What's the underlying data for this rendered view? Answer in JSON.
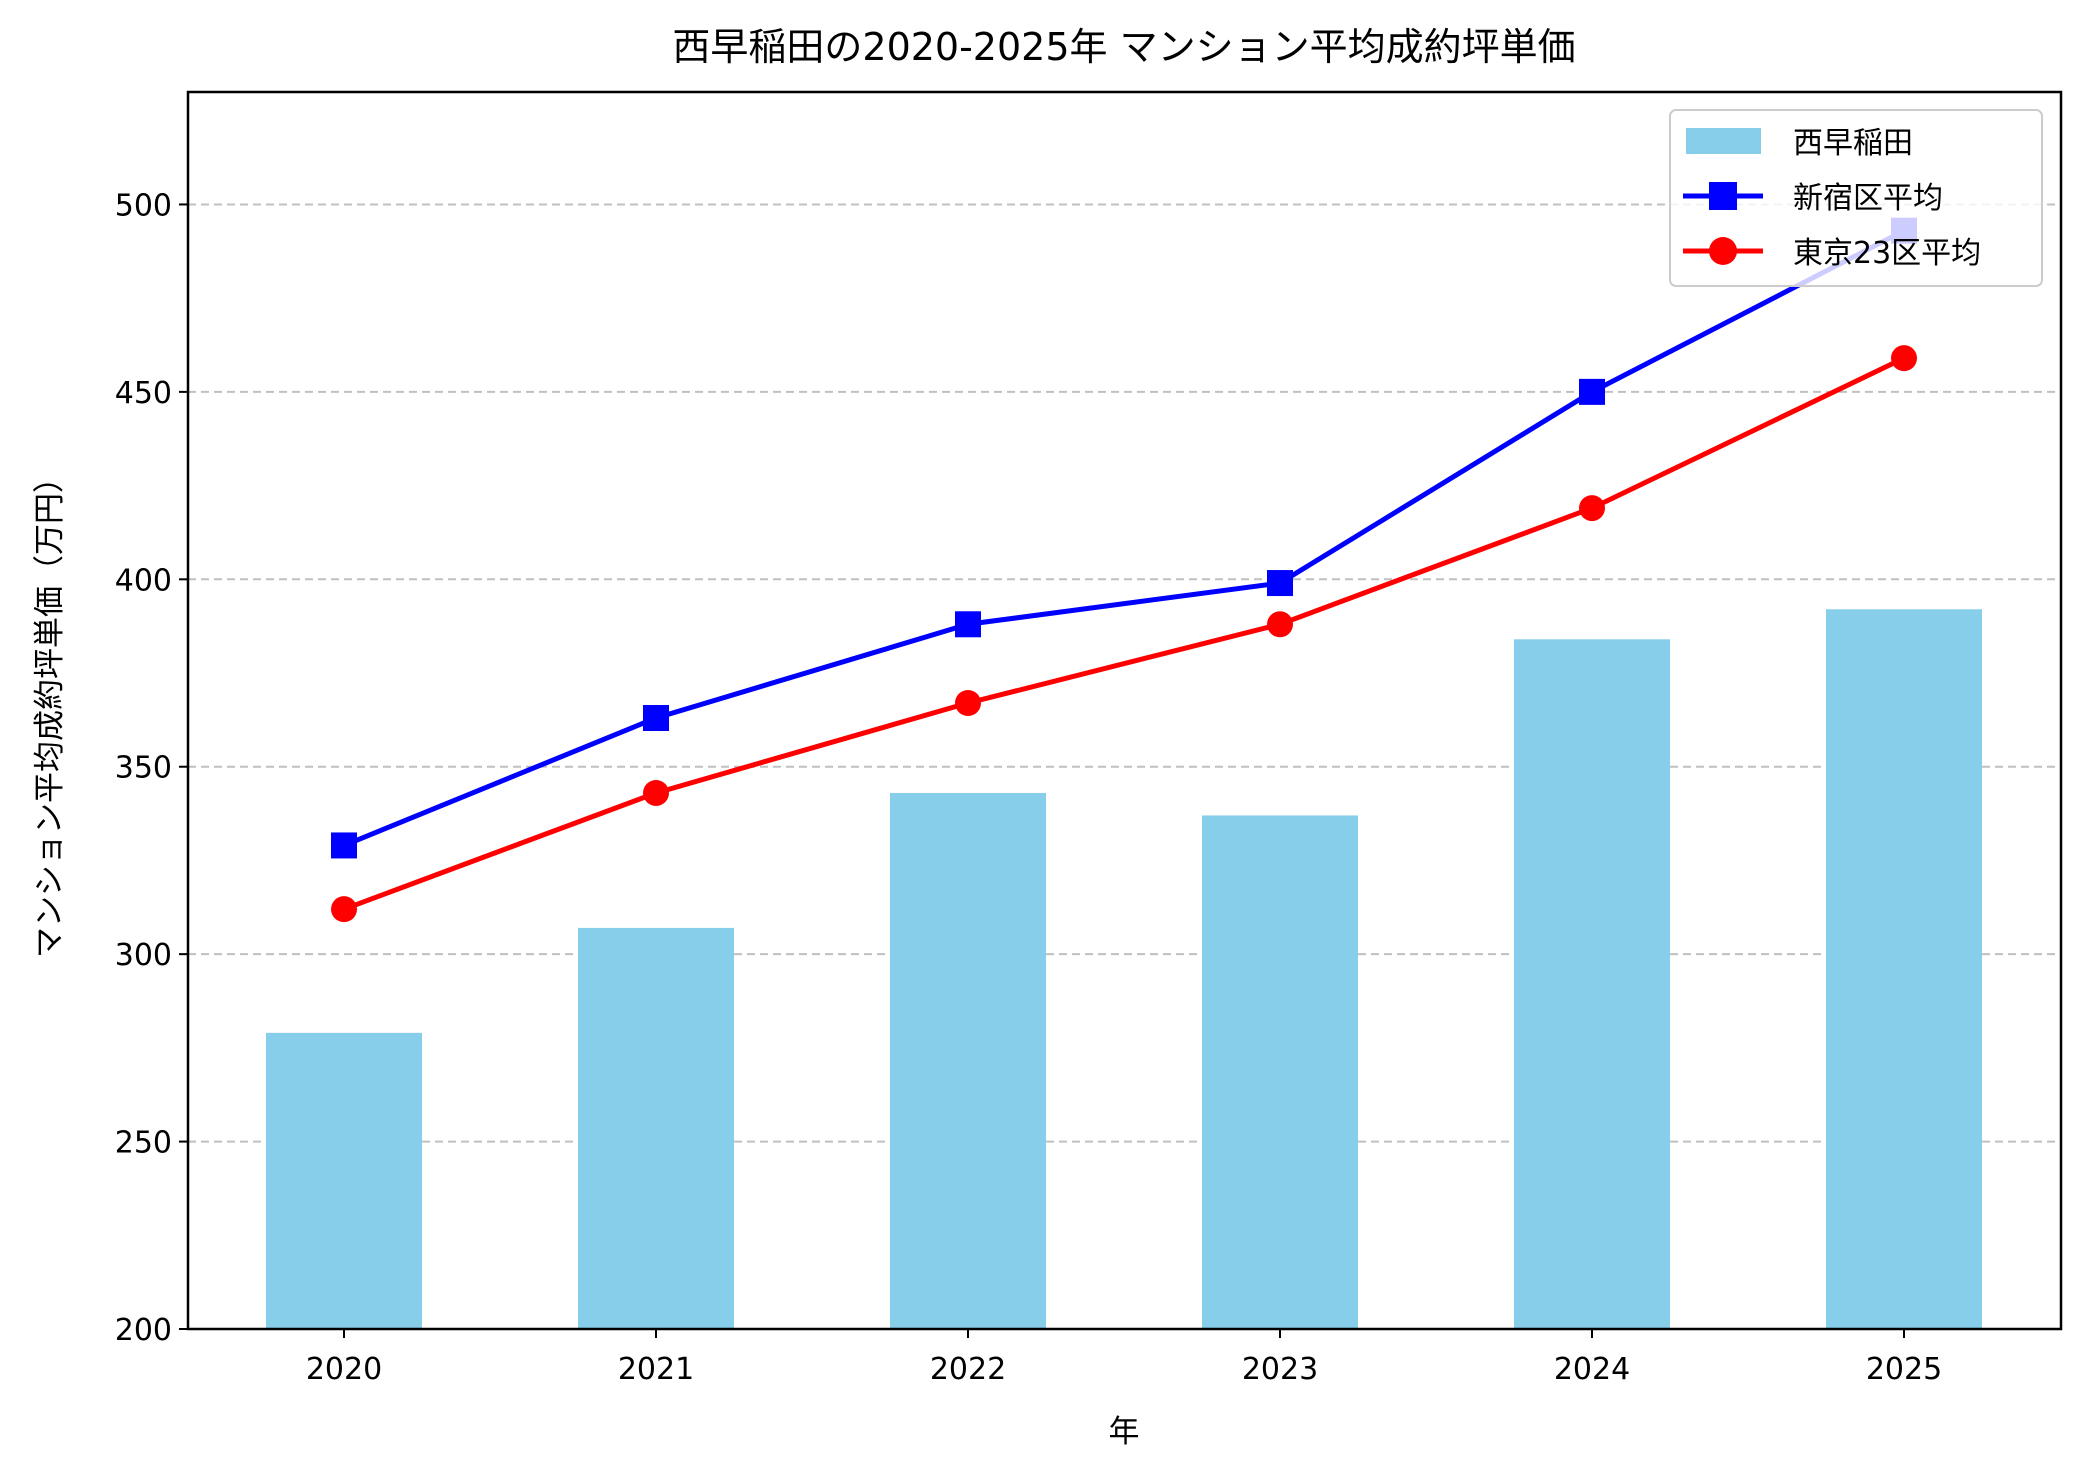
{
  "chart_data": {
    "type": "bar+line",
    "title": "西早稲田の2020-2025年 マンション平均成約坪単価",
    "xlabel": "年",
    "ylabel": "マンション平均成約坪単価（万円）",
    "categories": [
      "2020",
      "2021",
      "2022",
      "2023",
      "2024",
      "2025"
    ],
    "ylim": [
      200,
      530
    ],
    "yticks": [
      200,
      250,
      300,
      350,
      400,
      450,
      500
    ],
    "grid": "y-dashed",
    "legend_position": "top-right",
    "series": [
      {
        "name": "西早稲田",
        "kind": "bar",
        "color": "#87ceeb",
        "values": [
          279,
          307,
          343,
          337,
          384,
          392
        ]
      },
      {
        "name": "新宿区平均",
        "kind": "line",
        "marker": "square",
        "color": "#0000ff",
        "values": [
          329,
          363,
          388,
          399,
          450,
          493
        ]
      },
      {
        "name": "東京23区平均",
        "kind": "line",
        "marker": "circle",
        "color": "#ff0000",
        "values": [
          312,
          343,
          367,
          388,
          419,
          459
        ]
      }
    ]
  }
}
